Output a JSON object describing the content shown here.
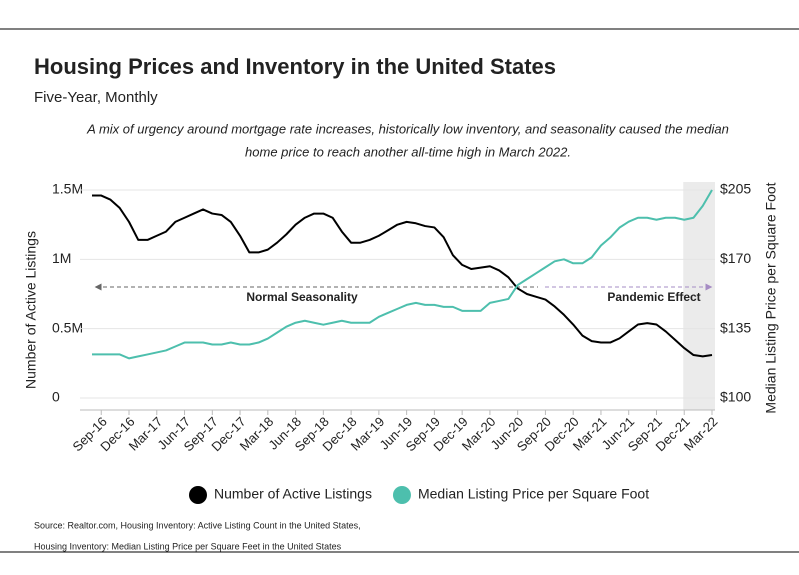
{
  "chart_data": {
    "type": "line",
    "title": "Housing Prices and Inventory in the United States",
    "subtitle": "Five-Year, Monthly",
    "description": [
      "A mix of urgency around mortgage rate increases, historically low inventory, and seasonality caused the median",
      "home price to reach another all-time high in March 2022."
    ],
    "ylabel": "Number of Active Listings",
    "y2label": "Median Listing Price per Square Foot",
    "categories": [
      null,
      "Sep-16",
      null,
      null,
      "Dec-16",
      null,
      null,
      "Mar-17",
      null,
      null,
      "Jun-17",
      null,
      null,
      "Sep-17",
      null,
      null,
      "Dec-17",
      null,
      null,
      "Mar-18",
      null,
      null,
      "Jun-18",
      null,
      null,
      "Sep-18",
      null,
      null,
      "Dec-18",
      null,
      null,
      "Mar-19",
      null,
      null,
      "Jun-19",
      null,
      null,
      "Sep-19",
      null,
      null,
      "Dec-19",
      null,
      null,
      "Mar-20",
      null,
      null,
      "Jun-20",
      null,
      null,
      "Sep-20",
      null,
      null,
      "Dec-20",
      null,
      null,
      "Mar-21",
      null,
      null,
      "Jun-21",
      null,
      null,
      "Sep-21",
      null,
      null,
      "Dec-21",
      null,
      null,
      "Mar-22"
    ],
    "series": [
      {
        "name": "Number of Active Listings",
        "color": "#000000",
        "axis": "y",
        "values": [
          1460000,
          1460000,
          1430000,
          1370000,
          1270000,
          1140000,
          1140000,
          1170000,
          1200000,
          1270000,
          1300000,
          1330000,
          1360000,
          1330000,
          1320000,
          1270000,
          1170000,
          1050000,
          1050000,
          1070000,
          1120000,
          1180000,
          1250000,
          1300000,
          1330000,
          1330000,
          1300000,
          1200000,
          1120000,
          1120000,
          1140000,
          1170000,
          1210000,
          1250000,
          1270000,
          1260000,
          1240000,
          1230000,
          1160000,
          1030000,
          960000,
          930000,
          940000,
          950000,
          920000,
          870000,
          790000,
          750000,
          730000,
          710000,
          660000,
          600000,
          530000,
          450000,
          410000,
          400000,
          400000,
          430000,
          480000,
          530000,
          540000,
          530000,
          480000,
          420000,
          360000,
          310000,
          300000,
          310000
        ]
      },
      {
        "name": "Median Listing Price per Square Foot",
        "color": "#4dbfad",
        "axis": "y2",
        "values": [
          122,
          122,
          122,
          122,
          120,
          121,
          122,
          123,
          124,
          126,
          128,
          128,
          128,
          127,
          127,
          128,
          127,
          127,
          128,
          130,
          133,
          136,
          138,
          139,
          138,
          137,
          138,
          139,
          138,
          138,
          138,
          141,
          143,
          145,
          147,
          148,
          147,
          147,
          146,
          146,
          144,
          144,
          144,
          148,
          149,
          150,
          157,
          160,
          163,
          166,
          169,
          170,
          168,
          168,
          171,
          177,
          181,
          186,
          189,
          191,
          191,
          190,
          191,
          191,
          190,
          191,
          197,
          205
        ]
      }
    ],
    "ylim": [
      0,
      1500000
    ],
    "yticks": [
      {
        "value": 0,
        "label": "0"
      },
      {
        "value": 500000,
        "label": "0.5M"
      },
      {
        "value": 1000000,
        "label": "1M"
      },
      {
        "value": 1500000,
        "label": "1.5M"
      }
    ],
    "y2lim": [
      100,
      205
    ],
    "y2ticks": [
      {
        "value": 100,
        "label": "$100"
      },
      {
        "value": 135,
        "label": "$135"
      },
      {
        "value": 170,
        "label": "$170"
      },
      {
        "value": 205,
        "label": "$205"
      }
    ],
    "grid": true,
    "legend": "bottom",
    "highlight": {
      "from": "Dec-21",
      "to": "Mar-22"
    },
    "annotations": [
      "Normal Seasonality",
      "Pandemic Effect"
    ],
    "source": [
      "Source:  Realtor.com, Housing Inventory: Active Listing Count in the United States,",
      "Housing Inventory: Median Listing Price per Square Feet in the United States"
    ]
  }
}
